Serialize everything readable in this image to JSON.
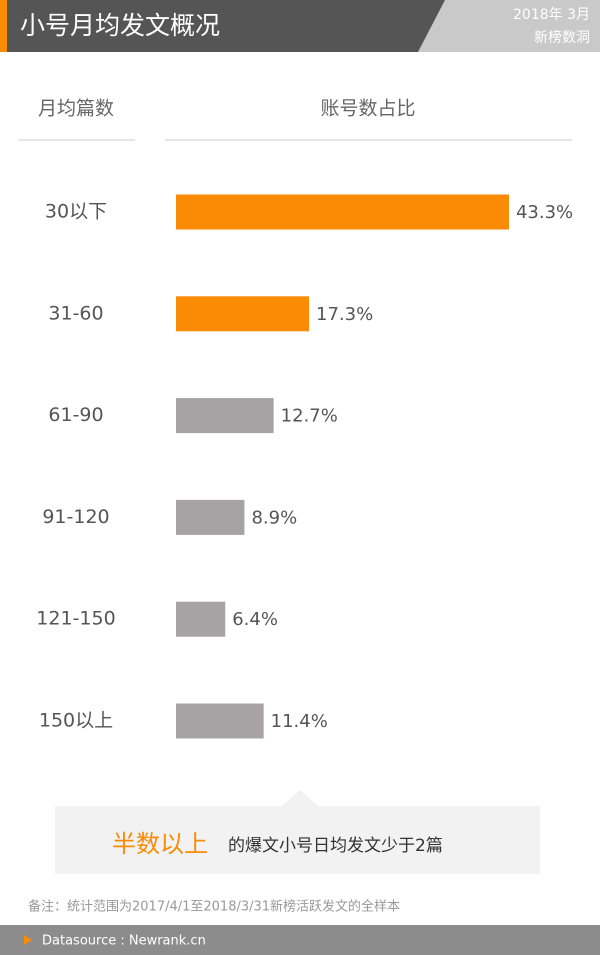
{
  "header": {
    "title": "小号月均发文概况",
    "date": "2018年 3月",
    "brand": "新榜数洞"
  },
  "chart_data": {
    "type": "bar",
    "category_header": "月均篇数",
    "value_header": "账号数占比",
    "categories": [
      "30以下",
      "31-60",
      "61-90",
      "91-120",
      "121-150",
      "150以上"
    ],
    "values": [
      43.3,
      17.3,
      12.7,
      8.9,
      6.4,
      11.4
    ],
    "value_labels": [
      "43.3%",
      "17.3%",
      "12.7%",
      "8.9%",
      "6.4%",
      "11.4%"
    ],
    "colors": [
      "#f98b05",
      "#f98b05",
      "#a7a3a4",
      "#a7a3a4",
      "#a7a3a4",
      "#a7a3a4"
    ]
  },
  "note": {
    "highlight": "半数以上",
    "text": "的爆文小号日均发文少于2篇"
  },
  "footnote": "备注：统计范围为2017/4/1至2018/3/31新榜活跃发文的全样本",
  "footer": "Datasource : Newrank.cn"
}
